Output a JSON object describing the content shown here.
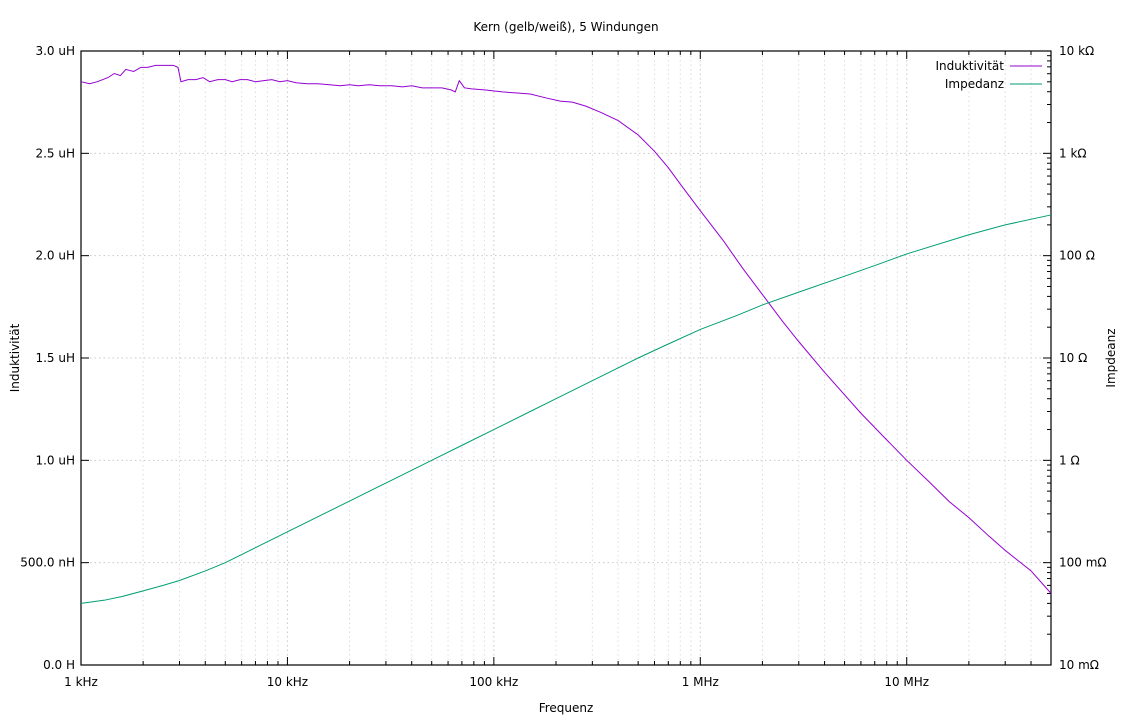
{
  "chart_data": {
    "type": "line",
    "title": "Kern (gelb/weiß), 5 Windungen",
    "xlabel": "Frequenz",
    "ylabel": "Induktivität",
    "y2label": "Impdeanz",
    "x_scale": "log",
    "xlim": [
      1000,
      50000000
    ],
    "ylim": [
      0,
      3e-06
    ],
    "y2_scale": "log",
    "y2lim": [
      0.01,
      10000
    ],
    "grid": true,
    "legend_position": "top-right",
    "x_ticks": [
      {
        "value": 1000,
        "label": "1 kHz"
      },
      {
        "value": 10000,
        "label": "10 kHz"
      },
      {
        "value": 100000,
        "label": "100 kHz"
      },
      {
        "value": 1000000,
        "label": "1 MHz"
      },
      {
        "value": 10000000,
        "label": "10 MHz"
      }
    ],
    "y_ticks": [
      {
        "value": 0,
        "label": "0.0 H"
      },
      {
        "value": 5e-07,
        "label": "500.0 nH"
      },
      {
        "value": 1e-06,
        "label": "1.0 uH"
      },
      {
        "value": 1.5e-06,
        "label": "1.5 uH"
      },
      {
        "value": 2e-06,
        "label": "2.0 uH"
      },
      {
        "value": 2.5e-06,
        "label": "2.5 uH"
      },
      {
        "value": 3e-06,
        "label": "3.0 uH"
      }
    ],
    "y2_ticks": [
      {
        "value": 0.01,
        "label": "10 mΩ"
      },
      {
        "value": 0.1,
        "label": "100 mΩ"
      },
      {
        "value": 1,
        "label": "1 Ω"
      },
      {
        "value": 10,
        "label": "10 Ω"
      },
      {
        "value": 100,
        "label": "100 Ω"
      },
      {
        "value": 1000,
        "label": "1 kΩ"
      },
      {
        "value": 10000,
        "label": "10 kΩ"
      }
    ],
    "series": [
      {
        "name": "Induktivität",
        "axis": "y",
        "color": "#9400d3",
        "points": [
          [
            1000,
            2.85e-06
          ],
          [
            1100,
            2.84e-06
          ],
          [
            1200,
            2.85e-06
          ],
          [
            1350,
            2.87e-06
          ],
          [
            1450,
            2.89e-06
          ],
          [
            1550,
            2.88e-06
          ],
          [
            1650,
            2.91e-06
          ],
          [
            1800,
            2.9e-06
          ],
          [
            1950,
            2.92e-06
          ],
          [
            2100,
            2.92e-06
          ],
          [
            2300,
            2.93e-06
          ],
          [
            2550,
            2.93e-06
          ],
          [
            2800,
            2.93e-06
          ],
          [
            2950,
            2.92e-06
          ],
          [
            3050,
            2.85e-06
          ],
          [
            3300,
            2.86e-06
          ],
          [
            3600,
            2.86e-06
          ],
          [
            3900,
            2.87e-06
          ],
          [
            4200,
            2.85e-06
          ],
          [
            4600,
            2.86e-06
          ],
          [
            5000,
            2.86e-06
          ],
          [
            5400,
            2.85e-06
          ],
          [
            5900,
            2.86e-06
          ],
          [
            6400,
            2.86e-06
          ],
          [
            7000,
            2.85e-06
          ],
          [
            7700,
            2.855e-06
          ],
          [
            8400,
            2.86e-06
          ],
          [
            9200,
            2.85e-06
          ],
          [
            10000,
            2.855e-06
          ],
          [
            11000,
            2.845e-06
          ],
          [
            12500,
            2.84e-06
          ],
          [
            14000,
            2.84e-06
          ],
          [
            16000,
            2.835e-06
          ],
          [
            18000,
            2.83e-06
          ],
          [
            20000,
            2.835e-06
          ],
          [
            22000,
            2.83e-06
          ],
          [
            25000,
            2.835e-06
          ],
          [
            28000,
            2.83e-06
          ],
          [
            32000,
            2.83e-06
          ],
          [
            36000,
            2.825e-06
          ],
          [
            40000,
            2.83e-06
          ],
          [
            45000,
            2.82e-06
          ],
          [
            50000,
            2.82e-06
          ],
          [
            56000,
            2.82e-06
          ],
          [
            62000,
            2.81e-06
          ],
          [
            65000,
            2.8e-06
          ],
          [
            68000,
            2.855e-06
          ],
          [
            72000,
            2.82e-06
          ],
          [
            78000,
            2.815e-06
          ],
          [
            90000,
            2.81e-06
          ],
          [
            110000,
            2.8e-06
          ],
          [
            130000,
            2.795e-06
          ],
          [
            150000,
            2.79e-06
          ],
          [
            180000,
            2.77e-06
          ],
          [
            210000,
            2.755e-06
          ],
          [
            240000,
            2.75e-06
          ],
          [
            280000,
            2.73e-06
          ],
          [
            330000,
            2.7e-06
          ],
          [
            400000,
            2.66e-06
          ],
          [
            500000,
            2.59e-06
          ],
          [
            600000,
            2.51e-06
          ],
          [
            700000,
            2.43e-06
          ],
          [
            800000,
            2.35e-06
          ],
          [
            1000000,
            2.22e-06
          ],
          [
            1300000,
            2.07e-06
          ],
          [
            1600000,
            1.94e-06
          ],
          [
            2000000,
            1.81e-06
          ],
          [
            2500000,
            1.68e-06
          ],
          [
            3000000,
            1.58e-06
          ],
          [
            4000000,
            1.43e-06
          ],
          [
            5000000,
            1.32e-06
          ],
          [
            6000000,
            1.23e-06
          ],
          [
            8000000,
            1.1e-06
          ],
          [
            10000000,
            1e-06
          ],
          [
            13000000,
            8.9e-07
          ],
          [
            16000000,
            8e-07
          ],
          [
            20000000,
            7.2e-07
          ],
          [
            25000000,
            6.3e-07
          ],
          [
            30000000,
            5.6e-07
          ],
          [
            40000000,
            4.6e-07
          ],
          [
            50000000,
            3.5e-07
          ]
        ]
      },
      {
        "name": "Impedanz",
        "axis": "y2",
        "color": "#009e73",
        "points": [
          [
            1000,
            0.04
          ],
          [
            1300,
            0.043
          ],
          [
            1600,
            0.047
          ],
          [
            2000,
            0.053
          ],
          [
            2500,
            0.06
          ],
          [
            3000,
            0.067
          ],
          [
            4000,
            0.083
          ],
          [
            5000,
            0.1
          ],
          [
            7000,
            0.14
          ],
          [
            10000,
            0.2
          ],
          [
            15000,
            0.3
          ],
          [
            20000,
            0.4
          ],
          [
            30000,
            0.6
          ],
          [
            50000,
            1.0
          ],
          [
            70000,
            1.4
          ],
          [
            100000,
            2.0
          ],
          [
            150000,
            3.0
          ],
          [
            200000,
            4.0
          ],
          [
            300000,
            6.0
          ],
          [
            500000,
            10.0
          ],
          [
            700000,
            13.7
          ],
          [
            1000000,
            19.0
          ],
          [
            1500000,
            26.0
          ],
          [
            2000000,
            33.0
          ],
          [
            3000000,
            44.0
          ],
          [
            5000000,
            63.0
          ],
          [
            7000000,
            80.0
          ],
          [
            10000000,
            104.0
          ],
          [
            20000000,
            160.0
          ],
          [
            30000000,
            200.0
          ],
          [
            50000000,
            250.0
          ]
        ]
      }
    ]
  }
}
